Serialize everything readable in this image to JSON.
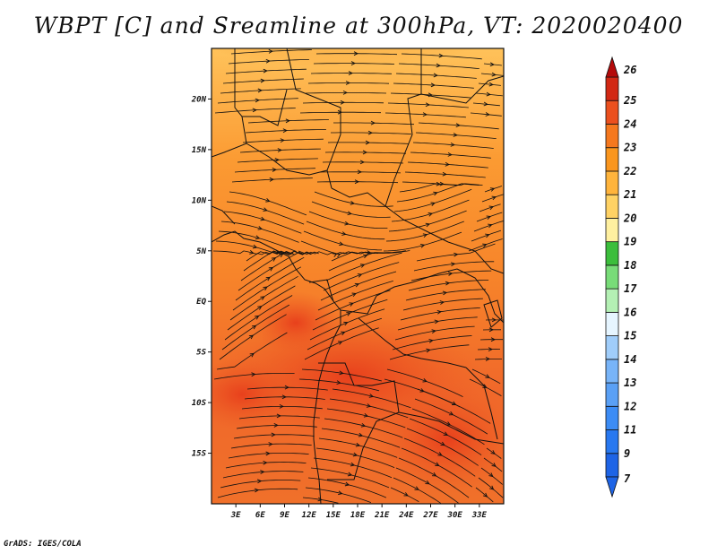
{
  "title": "WBPT [C] and Sreamline at 300hPa, VT: 2020020400",
  "credit": "GrADS: IGES/COLA",
  "map": {
    "variable": "WBPT",
    "units": "C",
    "level": "300hPa",
    "lon_range": [
      0,
      36
    ],
    "lat_range": [
      -20,
      25
    ],
    "lat_ticks": [
      {
        "value": 20,
        "label": "20N"
      },
      {
        "value": 15,
        "label": "15N"
      },
      {
        "value": 10,
        "label": "10N"
      },
      {
        "value": 5,
        "label": "5N"
      },
      {
        "value": 0,
        "label": "EQ"
      },
      {
        "value": -5,
        "label": "5S"
      },
      {
        "value": -10,
        "label": "10S"
      },
      {
        "value": -15,
        "label": "15S"
      }
    ],
    "lon_ticks": [
      {
        "value": 3,
        "label": "3E"
      },
      {
        "value": 6,
        "label": "6E"
      },
      {
        "value": 9,
        "label": "9E"
      },
      {
        "value": 12,
        "label": "12E"
      },
      {
        "value": 15,
        "label": "15E"
      },
      {
        "value": 18,
        "label": "18E"
      },
      {
        "value": 21,
        "label": "21E"
      },
      {
        "value": 24,
        "label": "24E"
      },
      {
        "value": 27,
        "label": "27E"
      },
      {
        "value": 30,
        "label": "30E"
      },
      {
        "value": 33,
        "label": "33E"
      }
    ]
  },
  "colorbar": {
    "levels": [
      {
        "label": "7",
        "color": "#1e64e6"
      },
      {
        "label": "9",
        "color": "#2878f0"
      },
      {
        "label": "11",
        "color": "#3c8cf5"
      },
      {
        "label": "12",
        "color": "#5aa0f5"
      },
      {
        "label": "13",
        "color": "#78b4f8"
      },
      {
        "label": "14",
        "color": "#a0cdfa"
      },
      {
        "label": "15",
        "color": "#e6f5ff"
      },
      {
        "label": "16",
        "color": "#b4f0b4"
      },
      {
        "label": "17",
        "color": "#78dc78"
      },
      {
        "label": "18",
        "color": "#3cbe3c"
      },
      {
        "label": "19",
        "color": "#fff0a0"
      },
      {
        "label": "20",
        "color": "#ffd264"
      },
      {
        "label": "21",
        "color": "#ffb43c"
      },
      {
        "label": "22",
        "color": "#fa961e"
      },
      {
        "label": "23",
        "color": "#f5781e"
      },
      {
        "label": "24",
        "color": "#eb501e"
      },
      {
        "label": "25",
        "color": "#d22814"
      },
      {
        "label": "26",
        "color": "#b40a0a"
      }
    ]
  }
}
